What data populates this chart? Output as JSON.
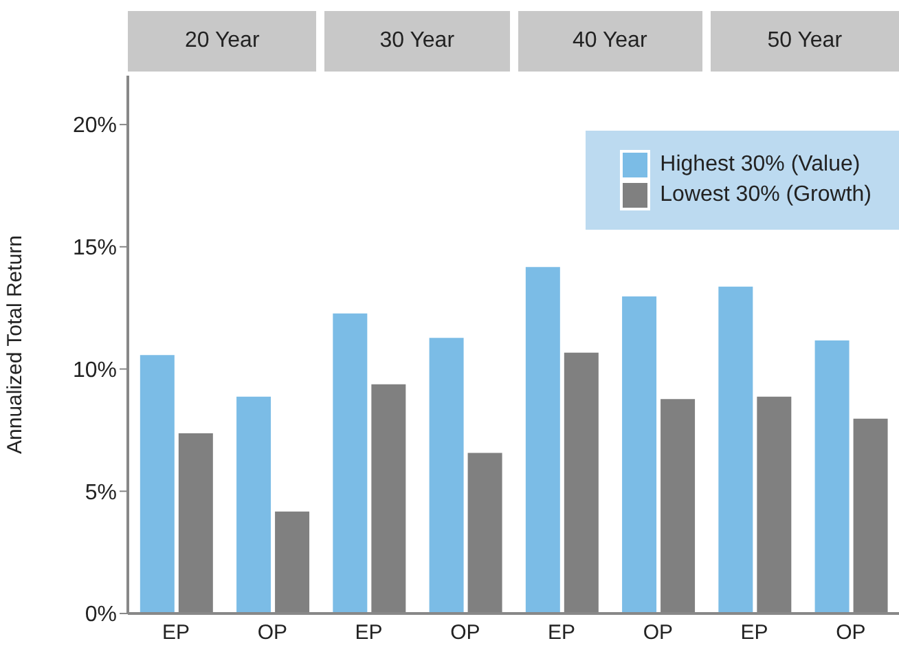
{
  "chart_data": {
    "type": "bar",
    "ylabel": "Annualized Total Return",
    "annotations": [
      "20 Year",
      "30 Year",
      "40 Year",
      "50 Year"
    ],
    "categories": [
      "EP",
      "OP",
      "EP",
      "OP",
      "EP",
      "OP",
      "EP",
      "OP"
    ],
    "ylim": [
      0,
      22
    ],
    "yticks": [
      {
        "value": 0,
        "label": "0%"
      },
      {
        "value": 5,
        "label": "5%"
      },
      {
        "value": 10,
        "label": "10%"
      },
      {
        "value": 15,
        "label": "15%"
      },
      {
        "value": 20,
        "label": "20%"
      }
    ],
    "grid": false,
    "legend": "top right",
    "series": [
      {
        "name": "Highest 30% (Value)",
        "color": "#7bbce6",
        "values": [
          10.6,
          8.9,
          12.3,
          11.3,
          14.2,
          13.0,
          13.4,
          11.2
        ]
      },
      {
        "name": "Lowest 30% (Growth)",
        "color": "#808080",
        "values": [
          7.4,
          4.2,
          9.4,
          6.6,
          10.7,
          8.8,
          8.9,
          8.0
        ]
      }
    ]
  }
}
